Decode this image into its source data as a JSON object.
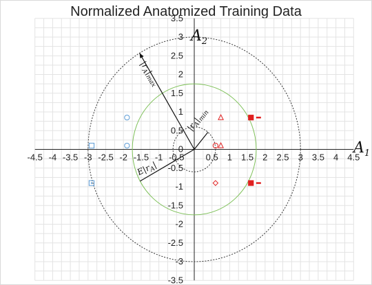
{
  "chart_data": {
    "type": "scatter",
    "title": "Normalized Anatomized Training Data",
    "xlabel": "A",
    "xlabel_sub": "1",
    "ylabel": "A",
    "ylabel_sub": "2",
    "xlim": [
      -4.5,
      4.5
    ],
    "ylim": [
      -3.5,
      3.5
    ],
    "x_ticks": [
      -4.5,
      -4,
      -3.5,
      -3,
      -2.5,
      -2,
      -1.5,
      -1,
      -0.5,
      0,
      0.5,
      1,
      1.5,
      2,
      2.5,
      3,
      3.5,
      4,
      4.5
    ],
    "y_ticks": [
      -3.5,
      -3,
      -2.5,
      -2,
      -1.5,
      -1,
      -0.5,
      0,
      0.5,
      1,
      1.5,
      2,
      2.5,
      3,
      3.5
    ],
    "grid": true,
    "series": [
      {
        "marker": "square-open",
        "color": "#5b9bd5",
        "x": [
          -2.9
        ],
        "y": [
          0.1
        ]
      },
      {
        "marker": "square-open-dot",
        "color": "#5b9bd5",
        "x": [
          -2.9
        ],
        "y": [
          -0.9
        ]
      },
      {
        "marker": "circle-open",
        "color": "#5b9bd5",
        "x": [
          -1.9,
          -1.9
        ],
        "y": [
          0.85,
          0.1
        ]
      },
      {
        "marker": "triangle-open",
        "color": "#e02020",
        "x": [
          0.75,
          0.75
        ],
        "y": [
          0.85,
          0.1
        ]
      },
      {
        "marker": "circle-open",
        "color": "#e02020",
        "x": [
          0.6
        ],
        "y": [
          0.1
        ]
      },
      {
        "marker": "diamond-open",
        "color": "#e02020",
        "x": [
          0.6
        ],
        "y": [
          -0.9
        ]
      },
      {
        "marker": "square-filled-dash",
        "color": "#e02020",
        "x": [
          1.6,
          1.6
        ],
        "y": [
          0.85,
          -0.9
        ]
      }
    ],
    "circles": [
      {
        "name": "min",
        "center": [
          0,
          0
        ],
        "radius": 0.6,
        "style": "dashed",
        "color": "#333333"
      },
      {
        "name": "mean",
        "center": [
          0,
          0
        ],
        "radius": 1.75,
        "style": "solid",
        "color": "#7fc15a"
      },
      {
        "name": "max",
        "center": [
          0,
          0
        ],
        "radius": 3.0,
        "style": "dashed",
        "color": "#333333"
      }
    ],
    "annotations": [
      {
        "text": "|r",
        "sub": "A",
        "tail": "|",
        "tailsub": "max",
        "ref": "max"
      },
      {
        "text": "|r",
        "sub": "A",
        "tail": "|",
        "tailsub": "min",
        "ref": "min"
      },
      {
        "text": "E|r",
        "sub": "A",
        "tail": "|",
        "tailsub": "",
        "ref": "mean"
      }
    ]
  }
}
